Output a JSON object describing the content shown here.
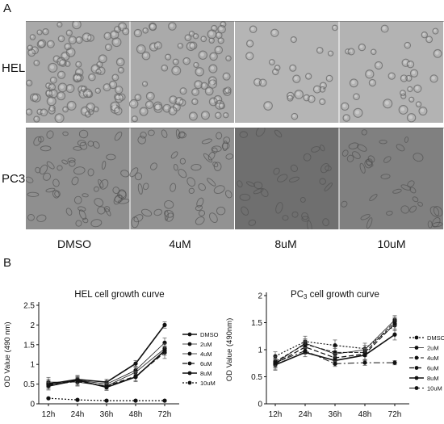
{
  "panels": {
    "a": "A",
    "b": "B"
  },
  "micrographs": {
    "rows": [
      "HEL",
      "PC3"
    ],
    "columns": [
      "DMSO",
      "4uM",
      "8uM",
      "10uM"
    ],
    "tone": {
      "HEL": [
        "#a9a9a9",
        "#aaaaaa",
        "#b5b5b5",
        "#b3b3b3"
      ],
      "PC3": [
        "#8f8f8f",
        "#929292",
        "#6f6f6f",
        "#808080"
      ]
    }
  },
  "chart_data": [
    {
      "type": "line",
      "title": "HEL cell growth curve",
      "ylabel": "OD Value (490 nm)",
      "xlabel": "",
      "categories": [
        "12h",
        "24h",
        "36h",
        "48h",
        "72h"
      ],
      "ylim": [
        0,
        2.5
      ],
      "yticks": [
        "0",
        "0.5",
        "1",
        "1.5",
        "2",
        "2.5"
      ],
      "legend_placement": "right",
      "series": [
        {
          "name": "DMSO",
          "values": [
            0.5,
            0.62,
            0.55,
            1.02,
            2.0
          ],
          "errors": [
            0.08,
            0.08,
            0.07,
            0.08,
            0.08
          ],
          "dash": "",
          "width": 1.6
        },
        {
          "name": "2uM",
          "values": [
            0.52,
            0.6,
            0.5,
            0.85,
            1.55
          ],
          "errors": [
            0.1,
            0.08,
            0.08,
            0.1,
            0.12
          ],
          "dash": "",
          "width": 0.8
        },
        {
          "name": "4uM",
          "values": [
            0.55,
            0.55,
            0.45,
            0.8,
            1.4
          ],
          "errors": [
            0.12,
            0.1,
            0.08,
            0.12,
            0.12
          ],
          "dash": "",
          "width": 0.8
        },
        {
          "name": "6uM",
          "values": [
            0.48,
            0.57,
            0.45,
            0.7,
            1.3
          ],
          "errors": [
            0.1,
            0.1,
            0.08,
            0.12,
            0.15
          ],
          "dash": "6,3",
          "width": 1.2
        },
        {
          "name": "8uM",
          "values": [
            0.45,
            0.6,
            0.42,
            0.68,
            1.35
          ],
          "errors": [
            0.1,
            0.12,
            0.08,
            0.12,
            0.12
          ],
          "dash": "",
          "width": 1.6
        },
        {
          "name": "10uM",
          "values": [
            0.14,
            0.1,
            0.08,
            0.08,
            0.08
          ],
          "errors": [
            0.02,
            0.02,
            0.02,
            0.02,
            0.02
          ],
          "dash": "2,2",
          "width": 1.2
        }
      ]
    },
    {
      "type": "line",
      "title": "PC3 cell growth curve",
      "title_parts": [
        "PC",
        "3",
        " cell growth curve"
      ],
      "ylabel": "OD Value (490nm)",
      "xlabel": "",
      "categories": [
        "12h",
        "24h",
        "36h",
        "48h",
        "72h"
      ],
      "ylim": [
        0,
        2
      ],
      "yticks": [
        "0",
        "0.5",
        "1",
        "1.5",
        "2"
      ],
      "legend_placement": "right",
      "series": [
        {
          "name": "DMSO",
          "values": [
            0.88,
            1.15,
            1.08,
            1.02,
            1.45
          ],
          "errors": [
            0.08,
            0.1,
            0.1,
            0.1,
            0.1
          ],
          "dash": "2,2",
          "width": 1.2
        },
        {
          "name": "2uM",
          "values": [
            0.75,
            1.12,
            0.92,
            1.0,
            1.55
          ],
          "errors": [
            0.08,
            0.08,
            0.1,
            0.08,
            0.08
          ],
          "dash": "",
          "width": 0.8
        },
        {
          "name": "4uM",
          "values": [
            0.78,
            1.1,
            0.95,
            0.95,
            1.52
          ],
          "errors": [
            0.1,
            0.08,
            0.1,
            0.08,
            0.08
          ],
          "dash": "5,2",
          "width": 1.0
        },
        {
          "name": "6uM",
          "values": [
            0.74,
            1.05,
            0.85,
            0.92,
            1.48
          ],
          "errors": [
            0.1,
            0.1,
            0.08,
            0.1,
            0.1
          ],
          "dash": "6,3",
          "width": 1.2
        },
        {
          "name": "8uM",
          "values": [
            0.72,
            0.95,
            0.8,
            0.9,
            1.28
          ],
          "errors": [
            0.1,
            0.08,
            0.08,
            0.1,
            0.1
          ],
          "dash": "",
          "width": 1.6
        },
        {
          "name": "10uM",
          "values": [
            0.76,
            0.98,
            0.74,
            0.76,
            0.76
          ],
          "errors": [
            0.06,
            0.06,
            0.05,
            0.05,
            0.04
          ],
          "dash": "8,3,2,3",
          "width": 1.0
        }
      ]
    }
  ]
}
